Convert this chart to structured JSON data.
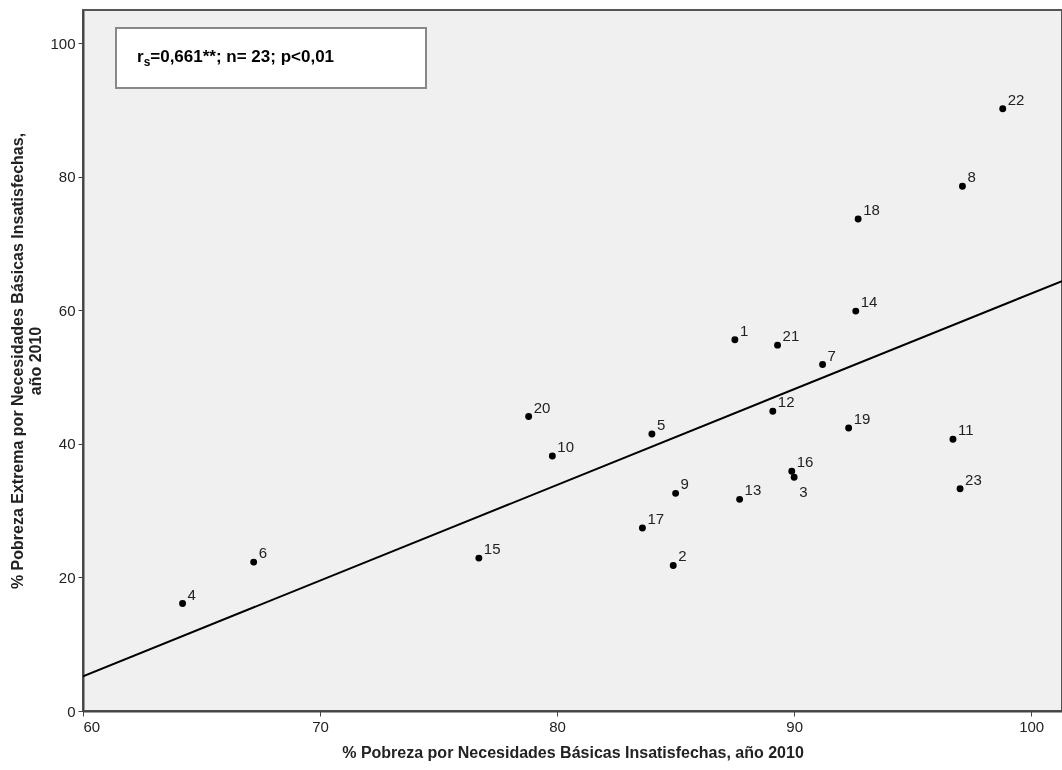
{
  "chart_data": {
    "type": "scatter",
    "xlabel": "% Pobreza por Necesidades Básicas Insatisfechas, año 2010",
    "ylabel": "% Pobreza Extrema por Necesidades Básicas Insatisfechas,\naño 2010",
    "annotations": [
      "r$_{s}$=0,661**; n= 23; p<0,01",
      {
        "text": "1",
        "x": 87.5,
        "y": 55.6
      },
      {
        "text": "2",
        "x": 84.9,
        "y": 21.8
      },
      {
        "text": "3",
        "x": 90.0,
        "y": 35.0
      },
      {
        "text": "4",
        "x": 64.2,
        "y": 16.1
      },
      {
        "text": "5",
        "x": 84.0,
        "y": 41.5
      },
      {
        "text": "6",
        "x": 67.2,
        "y": 22.3
      },
      {
        "text": "7",
        "x": 91.2,
        "y": 51.9
      },
      {
        "text": "8",
        "x": 97.1,
        "y": 78.6
      },
      {
        "text": "9",
        "x": 85.0,
        "y": 32.6
      },
      {
        "text": "10",
        "x": 79.8,
        "y": 38.2
      },
      {
        "text": "11",
        "x": 96.7,
        "y": 40.7
      },
      {
        "text": "12",
        "x": 89.1,
        "y": 44.9
      },
      {
        "text": "13",
        "x": 87.7,
        "y": 31.7
      },
      {
        "text": "14",
        "x": 92.6,
        "y": 59.9
      },
      {
        "text": "15",
        "x": 76.7,
        "y": 22.9
      },
      {
        "text": "16",
        "x": 89.9,
        "y": 35.9
      },
      {
        "text": "17",
        "x": 83.6,
        "y": 27.4
      },
      {
        "text": "18",
        "x": 92.7,
        "y": 73.7
      },
      {
        "text": "19",
        "x": 92.3,
        "y": 42.4
      },
      {
        "text": "20",
        "x": 78.8,
        "y": 44.1
      },
      {
        "text": "21",
        "x": 89.3,
        "y": 54.8
      },
      {
        "text": "22",
        "x": 98.8,
        "y": 90.2
      },
      {
        "text": "23",
        "x": 97.0,
        "y": 33.3
      }
    ],
    "xlim": [
      60,
      101.3
    ],
    "xticks": [
      60,
      70,
      80,
      90,
      100
    ],
    "ylim": [
      0,
      105
    ],
    "yticks": [
      0,
      20,
      40,
      60,
      80,
      100
    ],
    "series": [
      {
        "color": "#000000",
        "marker": "circle",
        "x": [
          87.5,
          84.9,
          90.0,
          64.2,
          84.0,
          67.2,
          91.2,
          97.1,
          85.0,
          79.8,
          96.7,
          89.1,
          87.7,
          92.6,
          76.7,
          89.9,
          83.6,
          92.7,
          92.3,
          78.8,
          89.3,
          98.8,
          97.0
        ],
        "values": [
          55.6,
          21.8,
          35.0,
          16.1,
          41.5,
          22.3,
          51.9,
          78.6,
          32.6,
          38.2,
          40.7,
          44.9,
          31.7,
          59.9,
          22.9,
          35.9,
          27.4,
          73.7,
          42.4,
          44.1,
          54.8,
          90.2,
          33.3
        ]
      },
      {
        "type": "line",
        "color": "#000000",
        "line_style": "solid",
        "x": [
          60,
          101.3
        ],
        "values": [
          5.2,
          64.4
        ]
      }
    ]
  }
}
